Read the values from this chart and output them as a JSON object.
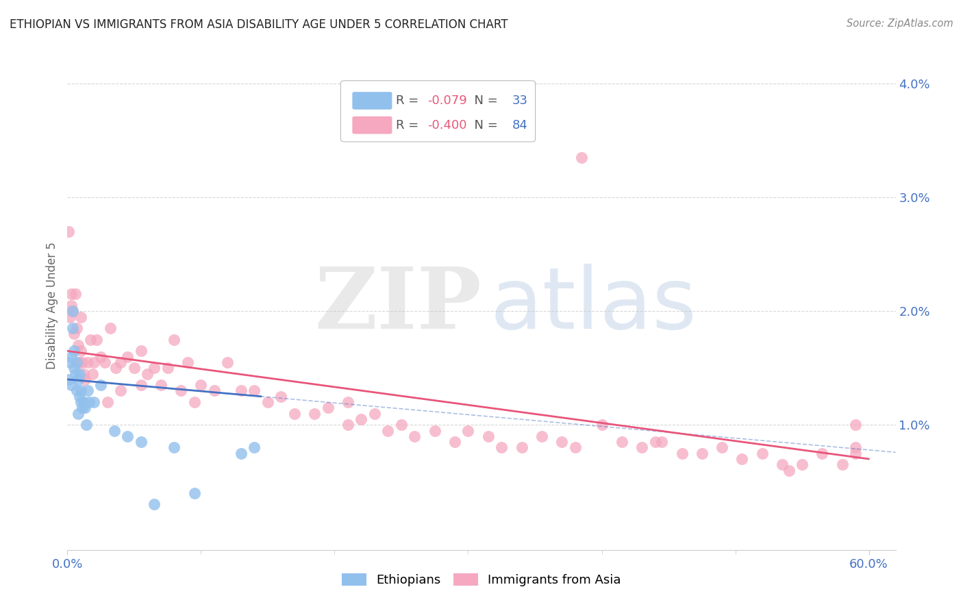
{
  "title": "ETHIOPIAN VS IMMIGRANTS FROM ASIA DISABILITY AGE UNDER 5 CORRELATION CHART",
  "source": "Source: ZipAtlas.com",
  "ylabel": "Disability Age Under 5",
  "xlim": [
    0.0,
    0.62
  ],
  "ylim": [
    -0.001,
    0.042
  ],
  "xticks": [
    0.0,
    0.6
  ],
  "xticklabels": [
    "0.0%",
    "60.0%"
  ],
  "yticks": [
    0.01,
    0.02,
    0.03,
    0.04
  ],
  "yticklabels": [
    "1.0%",
    "2.0%",
    "3.0%",
    "4.0%"
  ],
  "legend_r_ethiopian": "-0.079",
  "legend_n_ethiopian": "33",
  "legend_r_asian": "-0.400",
  "legend_n_asian": "84",
  "ethiopian_color": "#92C0ED",
  "asian_color": "#F5A8C0",
  "trend_ethiopian_solid_color": "#4472C4",
  "trend_asian_color": "#E8557A",
  "trend_ethiopian_dash_color": "#7AAAD8",
  "background_color": "#FFFFFF",
  "eth_x": [
    0.001,
    0.002,
    0.003,
    0.003,
    0.004,
    0.004,
    0.005,
    0.005,
    0.006,
    0.007,
    0.007,
    0.008,
    0.008,
    0.009,
    0.009,
    0.01,
    0.01,
    0.011,
    0.012,
    0.013,
    0.014,
    0.015,
    0.016,
    0.02,
    0.025,
    0.035,
    0.045,
    0.055,
    0.065,
    0.08,
    0.095,
    0.13,
    0.14
  ],
  "eth_y": [
    0.014,
    0.0155,
    0.0135,
    0.016,
    0.0185,
    0.02,
    0.015,
    0.0165,
    0.0145,
    0.013,
    0.0155,
    0.011,
    0.014,
    0.0125,
    0.0145,
    0.013,
    0.012,
    0.0115,
    0.012,
    0.0115,
    0.01,
    0.013,
    0.012,
    0.012,
    0.0135,
    0.0095,
    0.009,
    0.0085,
    0.003,
    0.008,
    0.004,
    0.0075,
    0.008
  ],
  "asia_x": [
    0.001,
    0.002,
    0.003,
    0.004,
    0.005,
    0.006,
    0.007,
    0.008,
    0.009,
    0.01,
    0.011,
    0.012,
    0.013,
    0.015,
    0.017,
    0.019,
    0.022,
    0.025,
    0.028,
    0.032,
    0.036,
    0.04,
    0.045,
    0.05,
    0.055,
    0.06,
    0.065,
    0.07,
    0.08,
    0.085,
    0.09,
    0.095,
    0.1,
    0.11,
    0.12,
    0.13,
    0.14,
    0.15,
    0.16,
    0.17,
    0.185,
    0.195,
    0.21,
    0.22,
    0.23,
    0.24,
    0.25,
    0.26,
    0.275,
    0.29,
    0.3,
    0.315,
    0.325,
    0.34,
    0.355,
    0.37,
    0.385,
    0.4,
    0.415,
    0.43,
    0.445,
    0.46,
    0.475,
    0.49,
    0.505,
    0.52,
    0.535,
    0.55,
    0.565,
    0.58,
    0.59,
    0.003,
    0.01,
    0.02,
    0.03,
    0.04,
    0.055,
    0.075,
    0.21,
    0.38,
    0.44,
    0.54,
    0.59,
    0.59
  ],
  "asia_y": [
    0.027,
    0.0195,
    0.0205,
    0.02,
    0.018,
    0.0215,
    0.0185,
    0.017,
    0.0155,
    0.0165,
    0.0155,
    0.0145,
    0.014,
    0.0155,
    0.0175,
    0.0145,
    0.0175,
    0.016,
    0.0155,
    0.0185,
    0.015,
    0.0155,
    0.016,
    0.015,
    0.0165,
    0.0145,
    0.015,
    0.0135,
    0.0175,
    0.013,
    0.0155,
    0.012,
    0.0135,
    0.013,
    0.0155,
    0.013,
    0.013,
    0.012,
    0.0125,
    0.011,
    0.011,
    0.0115,
    0.012,
    0.0105,
    0.011,
    0.0095,
    0.01,
    0.009,
    0.0095,
    0.0085,
    0.0095,
    0.009,
    0.008,
    0.008,
    0.009,
    0.0085,
    0.0335,
    0.01,
    0.0085,
    0.008,
    0.0085,
    0.0075,
    0.0075,
    0.008,
    0.007,
    0.0075,
    0.0065,
    0.0065,
    0.0075,
    0.0065,
    0.0075,
    0.0215,
    0.0195,
    0.0155,
    0.012,
    0.013,
    0.0135,
    0.015,
    0.01,
    0.008,
    0.0085,
    0.006,
    0.01,
    0.008
  ]
}
